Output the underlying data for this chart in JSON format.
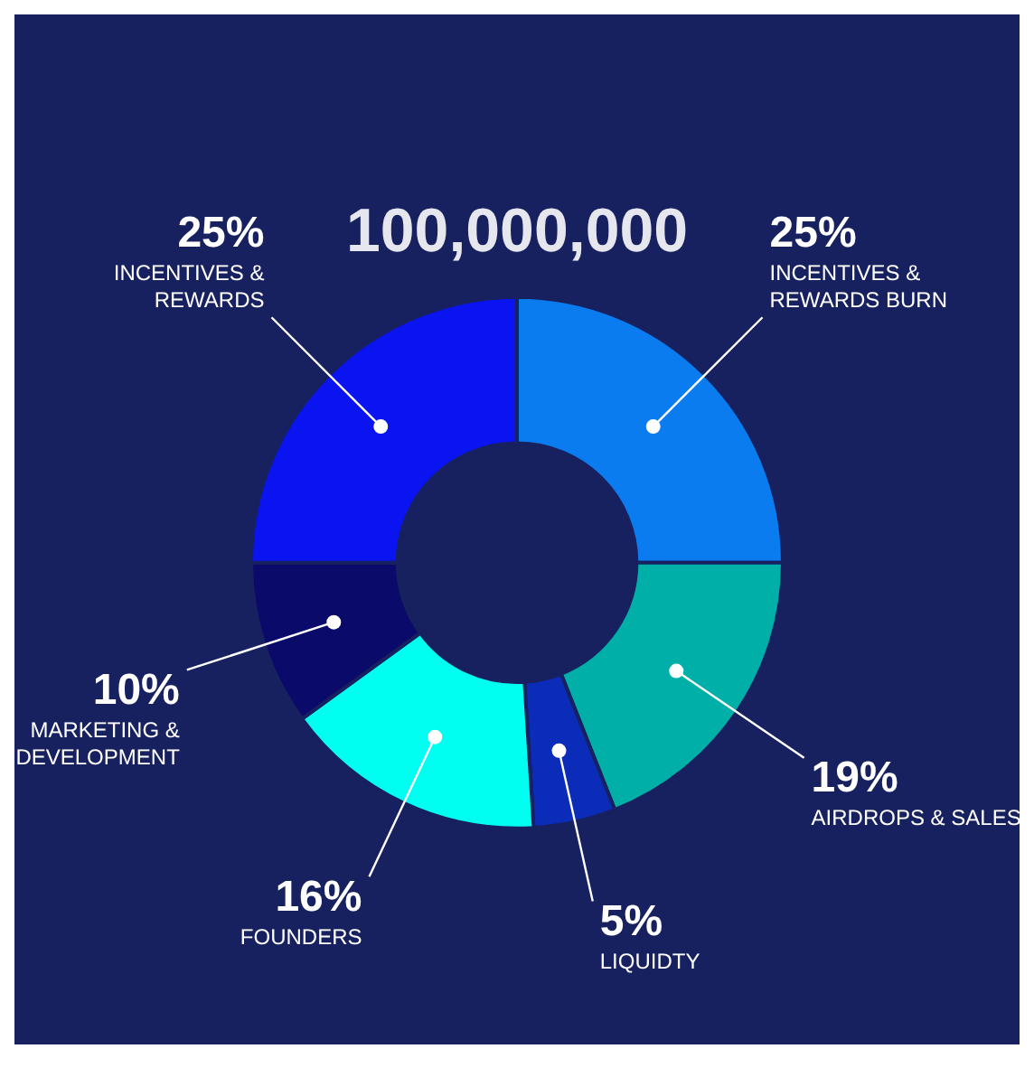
{
  "chart_data": {
    "type": "donut",
    "title": "100,000,000",
    "categories": [
      "INCENTIVES & REWARDS BURN",
      "AIRDROPS & SALES",
      "LIQUIDTY",
      "FOUNDERS",
      "MARKETING & DEVELOPMENT",
      "INCENTIVES & REWARDS"
    ],
    "values": [
      25,
      19,
      5,
      16,
      10,
      25
    ],
    "colors": [
      "#0a7cf0",
      "#00b0a8",
      "#0a2cb8",
      "#00fff0",
      "#0a0a6a",
      "#0a14f0"
    ],
    "value_labels": [
      "25%",
      "19%",
      "5%",
      "16%",
      "10%",
      "25%"
    ],
    "legend": false
  }
}
